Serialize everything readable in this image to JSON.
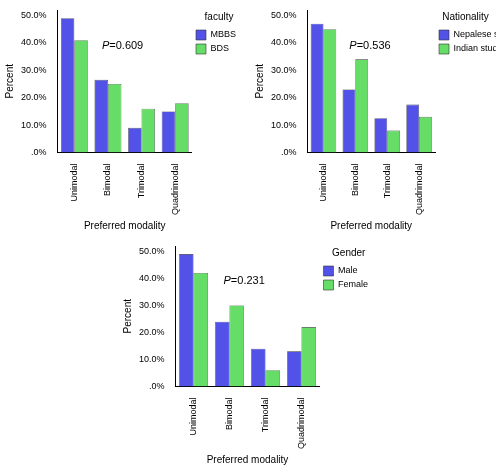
{
  "chart_data": [
    {
      "type": "bar",
      "legend_title": "faculty",
      "legend": "right",
      "grid": false,
      "x_label": "Preferred modality",
      "y_label": "Percent",
      "annotations": [
        {
          "text": "P=0.609"
        }
      ],
      "categories": [
        "Unimodal",
        "Bimodal",
        "Trimodal",
        "Quadrimodal"
      ],
      "series": [
        {
          "name": "MBBS",
          "color": "#5252e8",
          "values": [
            49,
            26.5,
            9,
            15
          ]
        },
        {
          "name": "BDS",
          "color": "#66dd66",
          "values": [
            41,
            25,
            16,
            18
          ]
        }
      ],
      "ylim": [
        0,
        52
      ],
      "yticks": [
        {
          "value": 0,
          "label": ".0%"
        },
        {
          "value": 10,
          "label": "10.0%"
        },
        {
          "value": 20,
          "label": "20.0%"
        },
        {
          "value": 30,
          "label": "30.0%"
        },
        {
          "value": 40,
          "label": "40.0%"
        },
        {
          "value": 50,
          "label": "50.0%"
        }
      ]
    },
    {
      "type": "bar",
      "legend_title": "Nationality",
      "legend": "right",
      "grid": false,
      "x_label": "Preferred modality",
      "y_label": "Percent",
      "annotations": [
        {
          "text": "P=0.536"
        }
      ],
      "categories": [
        "Unimodal",
        "Bimodal",
        "Trimodal",
        "Quadrimodal"
      ],
      "series": [
        {
          "name": "Nepalese students",
          "color": "#5252e8",
          "values": [
            47,
            23,
            12.5,
            17.5
          ]
        },
        {
          "name": "Indian students",
          "color": "#66dd66",
          "values": [
            45,
            34,
            8,
            13
          ]
        }
      ],
      "ylim": [
        0,
        52
      ],
      "yticks": [
        {
          "value": 0,
          "label": ".0%"
        },
        {
          "value": 10,
          "label": "10.0%"
        },
        {
          "value": 20,
          "label": "20.0%"
        },
        {
          "value": 30,
          "label": "30.0%"
        },
        {
          "value": 40,
          "label": "40.0%"
        },
        {
          "value": 50,
          "label": "50.0%"
        }
      ]
    },
    {
      "type": "bar",
      "legend_title": "Gender",
      "legend": "right",
      "grid": false,
      "x_label": "Preferred modality",
      "y_label": "Percent",
      "annotations": [
        {
          "text": "P=0.231"
        }
      ],
      "categories": [
        "Unimodal",
        "Bimodal",
        "Trimodal",
        "Quadrimodal"
      ],
      "series": [
        {
          "name": "Male",
          "color": "#5252e8",
          "values": [
            49,
            24,
            14,
            13
          ]
        },
        {
          "name": "Female",
          "color": "#66dd66",
          "values": [
            42,
            30,
            6,
            22
          ]
        }
      ],
      "ylim": [
        0,
        52
      ],
      "yticks": [
        {
          "value": 0,
          "label": ".0%"
        },
        {
          "value": 10,
          "label": "10.0%"
        },
        {
          "value": 20,
          "label": "20.0%"
        },
        {
          "value": 30,
          "label": "30.0%"
        },
        {
          "value": 40,
          "label": "40.0%"
        },
        {
          "value": 50,
          "label": "50.0%"
        }
      ]
    }
  ]
}
